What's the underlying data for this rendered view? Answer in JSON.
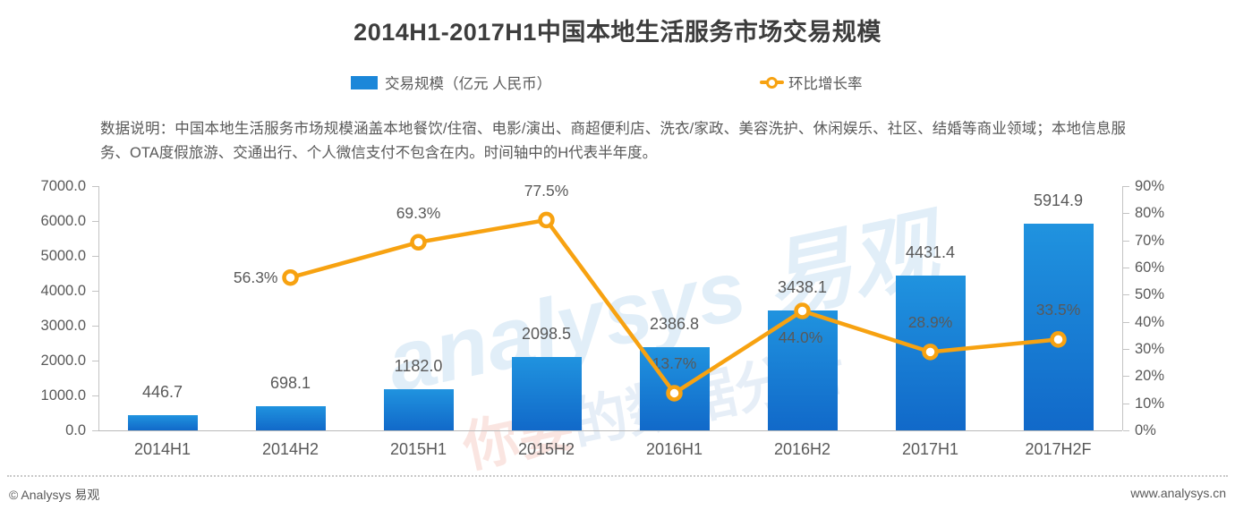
{
  "title": "2014H1-2017H1中国本地生活服务市场交易规模",
  "legend": [
    {
      "label": "交易规模（亿元 人民币）",
      "type": "bar",
      "color": "#1b87d9"
    },
    {
      "label": "环比增长率",
      "type": "line",
      "color": "#f7a211"
    }
  ],
  "note": "数据说明：中国本地生活服务市场规模涵盖本地餐饮/住宿、电影/演出、商超便利店、洗衣/家政、美容洗护、休闲娱乐、社区、结婚等商业领域；本地信息服务、OTA度假旅游、交通出行、个人微信支付不包含在内。时间轴中的H代表半年度。",
  "watermark": {
    "line1": "analysys 易观",
    "line2a": "你要",
    "line2b": "的数据分析"
  },
  "footer": {
    "copyright": "© Analysys 易观",
    "website": "www.analysys.cn"
  },
  "chart_data": {
    "type": "bar+line",
    "title": "2014H1-2017H1中国本地生活服务市场交易规模",
    "categories": [
      "2014H1",
      "2014H2",
      "2015H1",
      "2015H2",
      "2016H1",
      "2016H2",
      "2017H1",
      "2017H2F"
    ],
    "series": [
      {
        "name": "交易规模（亿元 人民币）",
        "type": "bar",
        "axis": "left",
        "values": [
          446.7,
          698.1,
          1182.0,
          2098.5,
          2386.8,
          3438.1,
          4431.4,
          5914.9
        ],
        "labels": [
          "446.7",
          "698.1",
          "1182.0",
          "2098.5",
          "2386.8",
          "3438.1",
          "4431.4",
          "5914.9"
        ]
      },
      {
        "name": "环比增长率",
        "type": "line",
        "axis": "right",
        "values": [
          null,
          56.3,
          69.3,
          77.5,
          13.7,
          44.0,
          28.9,
          33.5
        ],
        "labels": [
          "",
          "56.3%",
          "69.3%",
          "77.5%",
          "13.7%",
          "44.0%",
          "28.9%",
          "33.5%"
        ],
        "label_pos": [
          "",
          "left",
          "above",
          "above",
          "above",
          "below",
          "above",
          "above"
        ]
      }
    ],
    "left_axis": {
      "min": 0,
      "max": 7000,
      "ticks": [
        "7000.0",
        "6000.0",
        "5000.0",
        "4000.0",
        "3000.0",
        "2000.0",
        "1000.0",
        "0.0"
      ]
    },
    "right_axis": {
      "min": 0,
      "max": 90,
      "ticks": [
        "90%",
        "80%",
        "70%",
        "60%",
        "50%",
        "40%",
        "30%",
        "20%",
        "10%",
        "0%"
      ]
    },
    "grid": false,
    "legend_position": "top-center",
    "colors": {
      "bar_top": "#2093df",
      "bar_bottom": "#1169c9",
      "bar_legend": "#1b87d9",
      "line": "#f7a211"
    }
  }
}
